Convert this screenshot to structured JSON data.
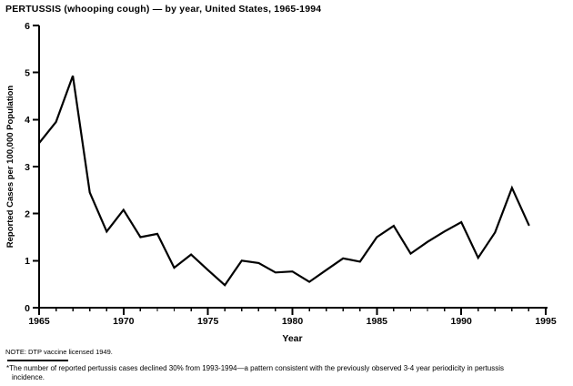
{
  "title": "PERTUSSIS (whooping cough) — by year, United States, 1965-1994",
  "note": "NOTE: DTP vaccine licensed 1949.",
  "footnote": {
    "marker": "*",
    "line1": "The number of reported pertussis cases declined 30% from 1993-1994—a pattern consistent with the previously observed 3-4 year periodicity in pertussis",
    "line2": "incidence."
  },
  "chart_data": {
    "type": "line",
    "title": "PERTUSSIS (whooping cough) — by year, United States, 1965-1994",
    "xlabel": "Year",
    "ylabel": "Reported Cases per 100,000 Population",
    "xlim": [
      1965,
      1995
    ],
    "ylim": [
      0,
      6
    ],
    "x_major_ticks": [
      1965,
      1970,
      1975,
      1980,
      1985,
      1990,
      1995
    ],
    "x_minor_tick_interval": 1,
    "y_ticks": [
      0,
      1,
      2,
      3,
      4,
      5,
      6
    ],
    "grid": false,
    "legend": false,
    "line_color": "#000000",
    "x": [
      1965,
      1966,
      1967,
      1968,
      1969,
      1970,
      1971,
      1972,
      1973,
      1974,
      1975,
      1976,
      1977,
      1978,
      1979,
      1980,
      1981,
      1982,
      1983,
      1984,
      1985,
      1986,
      1987,
      1988,
      1989,
      1990,
      1991,
      1992,
      1993,
      1994
    ],
    "values": [
      3.5,
      3.95,
      4.93,
      2.45,
      1.62,
      2.08,
      1.5,
      1.57,
      0.85,
      1.13,
      0.8,
      0.48,
      1.0,
      0.95,
      0.75,
      0.77,
      0.55,
      0.8,
      1.05,
      0.98,
      1.5,
      1.74,
      1.15,
      1.4,
      1.62,
      1.82,
      1.06,
      1.6,
      2.55,
      1.76
    ]
  }
}
